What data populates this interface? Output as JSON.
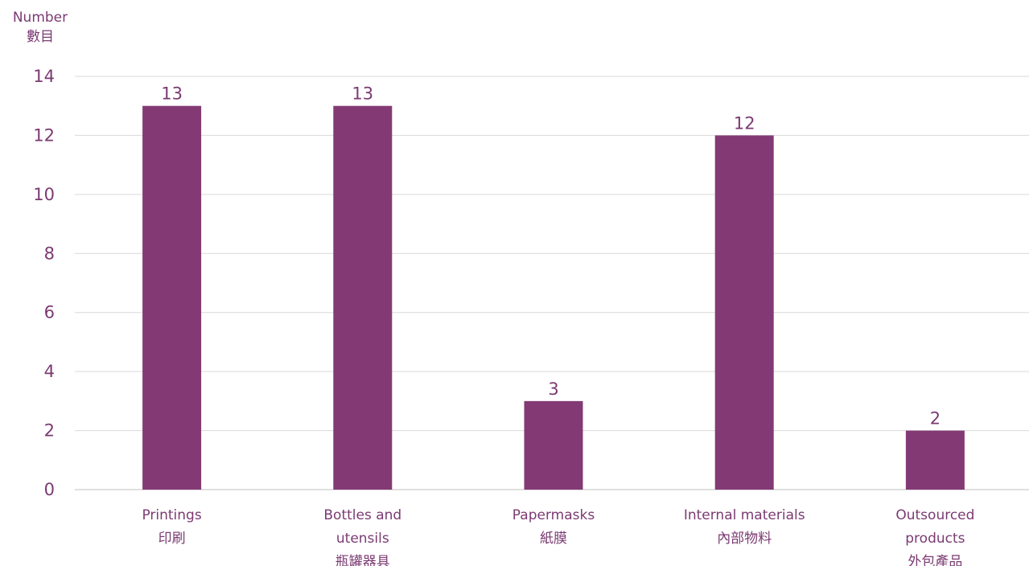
{
  "chart_data": {
    "type": "bar",
    "ylabel_lines": [
      "Number",
      "數目"
    ],
    "categories": [
      [
        "Printings",
        "印刷"
      ],
      [
        "Bottles and",
        "utensils",
        "瓶罐器具"
      ],
      [
        "Papermasks",
        "紙膜"
      ],
      [
        "Internal materials",
        "內部物料"
      ],
      [
        "Outsourced",
        "products",
        "外包產品"
      ]
    ],
    "values": [
      13,
      13,
      3,
      12,
      2
    ],
    "ylim": [
      0,
      14
    ],
    "yticks": [
      0,
      2,
      4,
      6,
      8,
      10,
      12,
      14
    ],
    "grid": true,
    "colors": {
      "bar": "#833a74",
      "text": "#7b3a72",
      "grid": "#d9d9d9",
      "axis": "#bfbfbf"
    }
  }
}
